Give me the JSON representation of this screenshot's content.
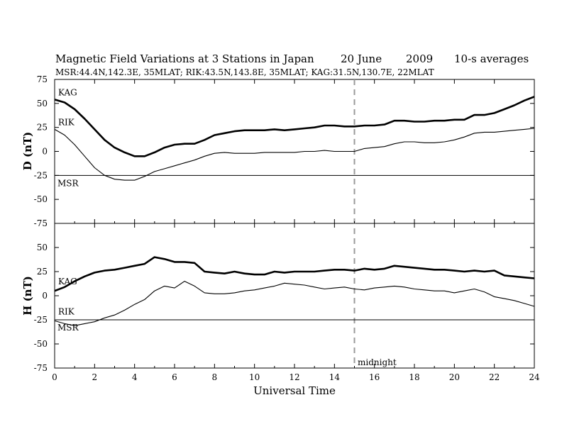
{
  "title": {
    "main": "Magnetic Field Variations at 3 Stations in Japan",
    "date": "20 June",
    "year": "2009",
    "averaging": "10-s averages"
  },
  "subtitle": "MSR:44.4N,142.3E, 35MLAT;   RIK:43.5N,143.8E, 35MLAT;   KAG:31.5N,130.7E, 22MLAT",
  "annotation_midnight": "midnight",
  "colors": {
    "line": "#000000",
    "midnight": "#9a9a9a",
    "background": "#ffffff"
  },
  "chart_data": [
    {
      "type": "line",
      "panel": "D",
      "ylabel": "D (nT)",
      "xlabel": "Universal Time",
      "xlim": [
        0,
        24
      ],
      "ylim": [
        -75,
        75
      ],
      "xticks": [
        "0",
        "2",
        "4",
        "6",
        "8",
        "10",
        "12",
        "14",
        "16",
        "18",
        "20",
        "22",
        "24"
      ],
      "yticks": [
        "75",
        "50",
        "25",
        "0",
        "-25",
        "-50",
        "-75"
      ],
      "reference_line": {
        "station": "MSR",
        "y": -25
      },
      "midnight_x": 15,
      "series": [
        {
          "name": "KAG",
          "thick": true,
          "x": [
            0,
            0.5,
            1,
            1.5,
            2,
            2.5,
            3,
            3.5,
            4,
            4.5,
            5,
            5.5,
            6,
            6.5,
            7,
            7.5,
            8,
            8.5,
            9,
            9.5,
            10,
            10.5,
            11,
            11.5,
            12,
            12.5,
            13,
            13.5,
            14,
            14.5,
            15,
            15.5,
            16,
            16.5,
            17,
            17.5,
            18,
            18.5,
            19,
            19.5,
            20,
            20.5,
            21,
            21.5,
            22,
            22.5,
            23,
            23.5,
            24
          ],
          "y": [
            54,
            51,
            44,
            34,
            23,
            12,
            4,
            -1,
            -5,
            -5,
            -1,
            4,
            7,
            8,
            8,
            12,
            17,
            19,
            21,
            22,
            22,
            22,
            23,
            22,
            23,
            24,
            25,
            27,
            27,
            26,
            26,
            27,
            27,
            28,
            32,
            32,
            31,
            31,
            32,
            32,
            33,
            33,
            38,
            38,
            40,
            44,
            48,
            53,
            57
          ]
        },
        {
          "name": "RIK",
          "thick": false,
          "x": [
            0,
            0.5,
            1,
            1.5,
            2,
            2.5,
            3,
            3.5,
            4,
            4.5,
            5,
            5.5,
            6,
            6.5,
            7,
            7.5,
            8,
            8.5,
            9,
            9.5,
            10,
            10.5,
            11,
            11.5,
            12,
            12.5,
            13,
            13.5,
            14,
            14.5,
            15,
            15.5,
            16,
            16.5,
            17,
            17.5,
            18,
            18.5,
            19,
            19.5,
            20,
            20.5,
            21,
            21.5,
            22,
            22.5,
            23,
            23.5,
            24
          ],
          "y": [
            23,
            17,
            7,
            -5,
            -17,
            -25,
            -29,
            -30,
            -30,
            -26,
            -21,
            -18,
            -15,
            -12,
            -9,
            -5,
            -2,
            -1,
            -2,
            -2,
            -2,
            -1,
            -1,
            -1,
            -1,
            0,
            0,
            1,
            0,
            0,
            0,
            3,
            4,
            5,
            8,
            10,
            10,
            9,
            9,
            10,
            12,
            15,
            19,
            20,
            20,
            21,
            22,
            23,
            24
          ]
        }
      ]
    },
    {
      "type": "line",
      "panel": "H",
      "ylabel": "H (nT)",
      "xlabel": "Universal Time",
      "xlim": [
        0,
        24
      ],
      "ylim": [
        -75,
        75
      ],
      "xticks": [
        "0",
        "2",
        "4",
        "6",
        "8",
        "10",
        "12",
        "14",
        "16",
        "18",
        "20",
        "22",
        "24"
      ],
      "yticks": [
        "75",
        "50",
        "25",
        "0",
        "-25",
        "-50",
        "-75"
      ],
      "reference_line": {
        "station": "MSR",
        "y": -25
      },
      "midnight_x": 15,
      "series": [
        {
          "name": "KAG",
          "thick": true,
          "x": [
            0,
            0.5,
            1,
            1.5,
            2,
            2.5,
            3,
            3.5,
            4,
            4.5,
            5,
            5.5,
            6,
            6.5,
            7,
            7.5,
            8,
            8.5,
            9,
            9.5,
            10,
            10.5,
            11,
            11.5,
            12,
            12.5,
            13,
            13.5,
            14,
            14.5,
            15,
            15.5,
            16,
            16.5,
            17,
            17.5,
            18,
            18.5,
            19,
            19.5,
            20,
            20.5,
            21,
            21.5,
            22,
            22.5,
            23,
            23.5,
            24
          ],
          "y": [
            5,
            9,
            15,
            20,
            24,
            26,
            27,
            29,
            31,
            33,
            40,
            38,
            35,
            35,
            34,
            25,
            24,
            23,
            25,
            23,
            22,
            22,
            25,
            24,
            25,
            25,
            25,
            26,
            27,
            27,
            26,
            28,
            27,
            28,
            31,
            30,
            29,
            28,
            27,
            27,
            26,
            25,
            26,
            25,
            26,
            21,
            20,
            19,
            18
          ]
        },
        {
          "name": "RIK",
          "thick": false,
          "x": [
            0,
            0.5,
            1,
            1.5,
            2,
            2.5,
            3,
            3.5,
            4,
            4.5,
            5,
            5.5,
            6,
            6.5,
            7,
            7.5,
            8,
            8.5,
            9,
            9.5,
            10,
            10.5,
            11,
            11.5,
            12,
            12.5,
            13,
            13.5,
            14,
            14.5,
            15,
            15.5,
            16,
            16.5,
            17,
            17.5,
            18,
            18.5,
            19,
            19.5,
            20,
            20.5,
            21,
            21.5,
            22,
            22.5,
            23,
            23.5,
            24
          ],
          "y": [
            -26,
            -29,
            -31,
            -29,
            -27,
            -23,
            -20,
            -15,
            -9,
            -4,
            5,
            10,
            8,
            15,
            10,
            3,
            2,
            2,
            3,
            5,
            6,
            8,
            10,
            13,
            12,
            11,
            9,
            7,
            8,
            9,
            7,
            6,
            8,
            9,
            10,
            9,
            7,
            6,
            5,
            5,
            3,
            5,
            7,
            4,
            -1,
            -3,
            -5,
            -8,
            -11
          ]
        }
      ]
    }
  ]
}
